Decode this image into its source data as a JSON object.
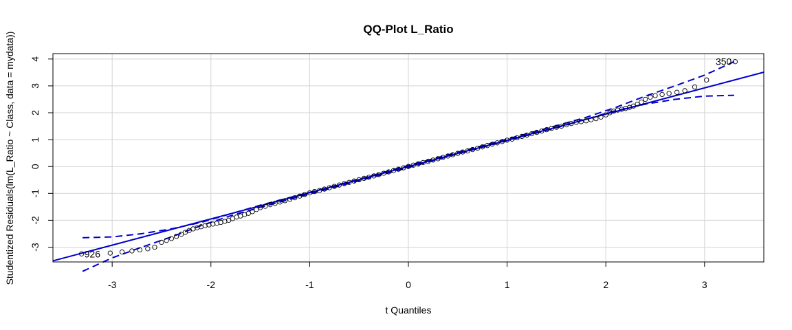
{
  "chart_data": {
    "type": "scatter",
    "title": "QQ-Plot L_Ratio",
    "xlabel": "t Quantiles",
    "ylabel": "Studentized Residuals(lm(L_Ratio ~ Class, data = mydata))",
    "xlim": [
      -3.6,
      3.6
    ],
    "ylim": [
      -3.55,
      4.2
    ],
    "x_ticks": [
      "-3",
      "-2",
      "-1",
      "0",
      "1",
      "2",
      "3"
    ],
    "y_ticks": [
      "-3",
      "-2",
      "-1",
      "0",
      "1",
      "2",
      "3",
      "4"
    ],
    "grid": true,
    "reference_line": {
      "intercept": 0.0,
      "slope": 0.975,
      "color": "#0000cd"
    },
    "confidence_envelope": {
      "style": "dashed",
      "color": "#0000cd",
      "upper": [
        [
          -3.3,
          -2.65
        ],
        [
          -3.0,
          -2.62
        ],
        [
          -2.7,
          -2.5
        ],
        [
          -2.4,
          -2.32
        ],
        [
          -2.1,
          -2.08
        ],
        [
          -1.8,
          -1.76
        ],
        [
          -1.5,
          -1.44
        ],
        [
          -1.0,
          -0.96
        ],
        [
          -0.5,
          -0.47
        ],
        [
          0.0,
          0.04
        ],
        [
          0.5,
          0.53
        ],
        [
          1.0,
          1.02
        ],
        [
          1.5,
          1.52
        ],
        [
          1.8,
          1.83
        ],
        [
          2.1,
          2.2
        ],
        [
          2.4,
          2.62
        ],
        [
          2.7,
          3.0
        ],
        [
          3.0,
          3.4
        ],
        [
          3.3,
          3.9
        ]
      ],
      "lower": [
        [
          -3.3,
          -3.9
        ],
        [
          -3.0,
          -3.4
        ],
        [
          -2.7,
          -3.0
        ],
        [
          -2.4,
          -2.62
        ],
        [
          -2.1,
          -2.2
        ],
        [
          -1.8,
          -1.83
        ],
        [
          -1.5,
          -1.52
        ],
        [
          -1.0,
          -1.02
        ],
        [
          -0.5,
          -0.53
        ],
        [
          0.0,
          -0.04
        ],
        [
          0.5,
          0.47
        ],
        [
          1.0,
          0.96
        ],
        [
          1.5,
          1.44
        ],
        [
          1.8,
          1.76
        ],
        [
          2.1,
          2.08
        ],
        [
          2.4,
          2.32
        ],
        [
          2.7,
          2.5
        ],
        [
          3.0,
          2.62
        ],
        [
          3.3,
          2.65
        ]
      ]
    },
    "outliers": [
      {
        "label": "350",
        "x": 3.31,
        "y": 3.9
      },
      {
        "label": "926",
        "x": -3.31,
        "y": -3.25
      }
    ],
    "series": [
      {
        "points": [
          [
            -3.31,
            -3.25
          ],
          [
            -3.02,
            -3.22
          ],
          [
            -2.9,
            -3.18
          ],
          [
            -2.8,
            -3.14
          ],
          [
            -2.72,
            -3.1
          ],
          [
            -2.64,
            -3.06
          ],
          [
            -2.57,
            -3.0
          ],
          [
            -2.5,
            -2.82
          ],
          [
            -2.45,
            -2.75
          ],
          [
            -2.4,
            -2.68
          ],
          [
            -2.35,
            -2.6
          ],
          [
            -2.3,
            -2.52
          ],
          [
            -2.26,
            -2.45
          ],
          [
            -2.22,
            -2.38
          ],
          [
            -2.18,
            -2.32
          ],
          [
            -2.14,
            -2.28
          ],
          [
            -2.1,
            -2.24
          ],
          [
            -2.06,
            -2.2
          ],
          [
            -2.02,
            -2.17
          ],
          [
            -1.98,
            -2.14
          ],
          [
            -1.94,
            -2.11
          ],
          [
            -1.9,
            -2.08
          ],
          [
            -1.86,
            -2.04
          ],
          [
            -1.82,
            -2.0
          ],
          [
            -1.78,
            -1.94
          ],
          [
            -1.74,
            -1.88
          ],
          [
            -1.7,
            -1.84
          ],
          [
            -1.66,
            -1.79
          ],
          [
            -1.62,
            -1.74
          ],
          [
            -1.58,
            -1.68
          ],
          [
            -1.54,
            -1.6
          ],
          [
            -1.5,
            -1.53
          ],
          [
            -1.45,
            -1.48
          ],
          [
            -1.4,
            -1.42
          ],
          [
            -1.35,
            -1.37
          ],
          [
            -1.3,
            -1.32
          ],
          [
            -1.25,
            -1.27
          ],
          [
            -1.2,
            -1.22
          ],
          [
            -1.15,
            -1.16
          ],
          [
            -1.1,
            -1.1
          ],
          [
            -1.05,
            -1.04
          ],
          [
            -1.0,
            -0.98
          ],
          [
            -0.95,
            -0.93
          ],
          [
            -0.9,
            -0.89
          ],
          [
            -0.85,
            -0.84
          ],
          [
            -0.8,
            -0.79
          ],
          [
            -0.75,
            -0.74
          ],
          [
            -0.7,
            -0.69
          ],
          [
            -0.65,
            -0.64
          ],
          [
            -0.6,
            -0.59
          ],
          [
            -0.55,
            -0.54
          ],
          [
            -0.5,
            -0.49
          ],
          [
            -0.45,
            -0.44
          ],
          [
            -0.4,
            -0.4
          ],
          [
            -0.35,
            -0.35
          ],
          [
            -0.3,
            -0.3
          ],
          [
            -0.25,
            -0.25
          ],
          [
            -0.2,
            -0.2
          ],
          [
            -0.15,
            -0.15
          ],
          [
            -0.1,
            -0.1
          ],
          [
            -0.05,
            -0.05
          ],
          [
            0.0,
            0.0
          ],
          [
            0.05,
            0.05
          ],
          [
            0.1,
            0.1
          ],
          [
            0.15,
            0.15
          ],
          [
            0.2,
            0.19
          ],
          [
            0.25,
            0.24
          ],
          [
            0.3,
            0.29
          ],
          [
            0.35,
            0.34
          ],
          [
            0.4,
            0.39
          ],
          [
            0.45,
            0.44
          ],
          [
            0.5,
            0.49
          ],
          [
            0.55,
            0.54
          ],
          [
            0.6,
            0.58
          ],
          [
            0.65,
            0.63
          ],
          [
            0.7,
            0.68
          ],
          [
            0.75,
            0.73
          ],
          [
            0.8,
            0.78
          ],
          [
            0.85,
            0.83
          ],
          [
            0.9,
            0.88
          ],
          [
            0.95,
            0.93
          ],
          [
            1.0,
            0.98
          ],
          [
            1.05,
            1.02
          ],
          [
            1.1,
            1.07
          ],
          [
            1.15,
            1.12
          ],
          [
            1.2,
            1.17
          ],
          [
            1.25,
            1.22
          ],
          [
            1.3,
            1.27
          ],
          [
            1.35,
            1.32
          ],
          [
            1.4,
            1.37
          ],
          [
            1.45,
            1.42
          ],
          [
            1.5,
            1.46
          ],
          [
            1.55,
            1.5
          ],
          [
            1.6,
            1.55
          ],
          [
            1.65,
            1.6
          ],
          [
            1.7,
            1.64
          ],
          [
            1.75,
            1.67
          ],
          [
            1.8,
            1.7
          ],
          [
            1.85,
            1.74
          ],
          [
            1.9,
            1.78
          ],
          [
            1.95,
            1.84
          ],
          [
            2.0,
            1.92
          ],
          [
            2.04,
            2.0
          ],
          [
            2.08,
            2.06
          ],
          [
            2.12,
            2.1
          ],
          [
            2.16,
            2.13
          ],
          [
            2.2,
            2.16
          ],
          [
            2.24,
            2.2
          ],
          [
            2.28,
            2.25
          ],
          [
            2.32,
            2.32
          ],
          [
            2.36,
            2.4
          ],
          [
            2.4,
            2.5
          ],
          [
            2.45,
            2.58
          ],
          [
            2.5,
            2.64
          ],
          [
            2.57,
            2.68
          ],
          [
            2.64,
            2.72
          ],
          [
            2.72,
            2.76
          ],
          [
            2.8,
            2.82
          ],
          [
            2.9,
            2.96
          ],
          [
            3.02,
            3.22
          ],
          [
            3.31,
            3.9
          ]
        ]
      }
    ]
  }
}
